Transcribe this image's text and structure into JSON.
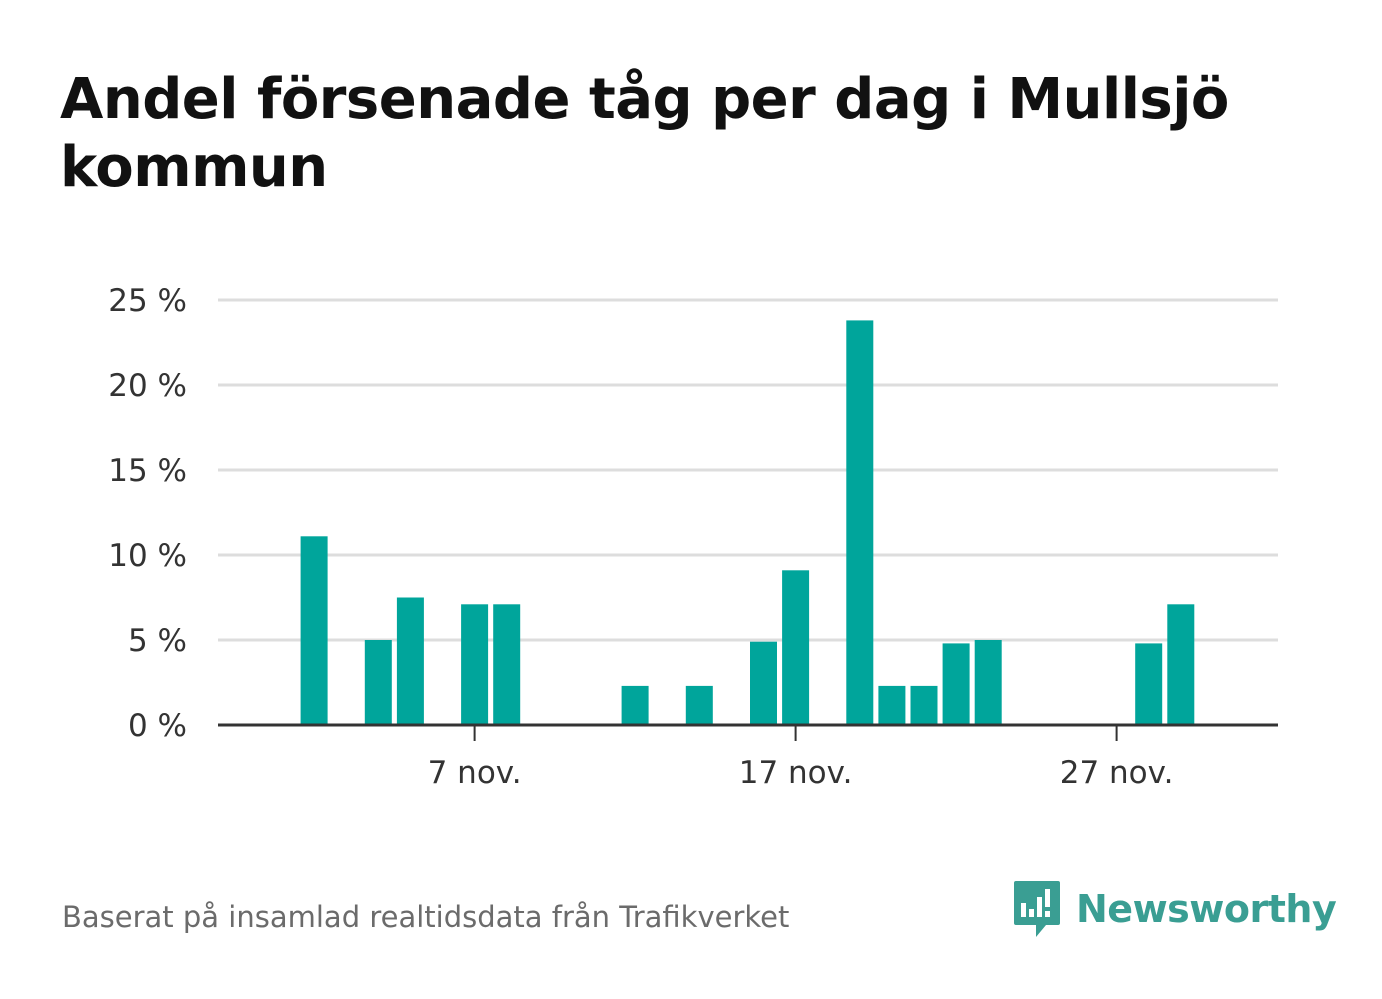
{
  "title": "Andel försenade tåg per dag i Mullsjö kommun",
  "footer": "Baserat på insamlad realtidsdata från Trafikverket",
  "brand": {
    "name": "Newsworthy",
    "icon": "newsworthy-logo-icon",
    "color": "#3a9e93"
  },
  "colors": {
    "bar": "#00a59b",
    "grid": "#dddddd",
    "axis": "#333333"
  },
  "chart_data": {
    "type": "bar",
    "title": "Andel försenade tåg per dag i Mullsjö kommun",
    "xlabel": "",
    "ylabel": "",
    "ylim": [
      0,
      25
    ],
    "yticks": [
      0,
      5,
      10,
      15,
      20,
      25
    ],
    "ytick_labels": [
      "0 %",
      "5 %",
      "10 %",
      "15 %",
      "20 %",
      "25 %"
    ],
    "xtick_labels": [
      {
        "day": 7,
        "label": "7 nov."
      },
      {
        "day": 17,
        "label": "17 nov."
      },
      {
        "day": 27,
        "label": "27 nov."
      }
    ],
    "grid": true,
    "categories": [
      "1 nov.",
      "2 nov.",
      "3 nov.",
      "4 nov.",
      "5 nov.",
      "6 nov.",
      "7 nov.",
      "8 nov.",
      "9 nov.",
      "10 nov.",
      "11 nov.",
      "12 nov.",
      "13 nov.",
      "14 nov.",
      "15 nov.",
      "16 nov.",
      "17 nov.",
      "18 nov.",
      "19 nov.",
      "20 nov.",
      "21 nov.",
      "22 nov.",
      "23 nov.",
      "24 nov.",
      "25 nov.",
      "26 nov.",
      "27 nov.",
      "28 nov.",
      "29 nov.",
      "30 nov."
    ],
    "values": [
      0,
      11.1,
      0,
      5.0,
      7.5,
      0,
      7.1,
      7.1,
      0,
      0,
      0,
      2.3,
      0,
      2.3,
      0,
      4.9,
      9.1,
      0,
      23.8,
      2.3,
      2.3,
      4.8,
      5.0,
      0,
      0,
      0,
      0,
      4.8,
      7.1,
      0
    ]
  }
}
